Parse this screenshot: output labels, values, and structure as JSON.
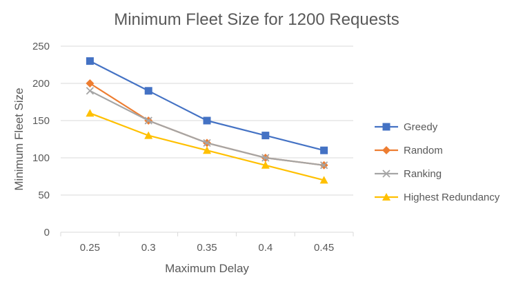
{
  "chart_data": {
    "type": "line",
    "title": "Minimum Fleet Size for 1200 Requests",
    "xlabel": "Maximum Delay",
    "ylabel": "Minimum Fleet Size",
    "categories": [
      "0.25",
      "0.3",
      "0.35",
      "0.4",
      "0.45"
    ],
    "ylim": [
      0,
      250
    ],
    "yticks": [
      "0",
      "50",
      "100",
      "150",
      "200",
      "250"
    ],
    "grid": true,
    "legend_position": "right",
    "series": [
      {
        "name": "Greedy",
        "values": [
          230,
          190,
          150,
          130,
          110
        ],
        "color": "#4472C4",
        "marker": "square"
      },
      {
        "name": "Random",
        "values": [
          200,
          150,
          120,
          100,
          90
        ],
        "color": "#ED7D31",
        "marker": "diamond"
      },
      {
        "name": "Ranking",
        "values": [
          190,
          150,
          120,
          100,
          90
        ],
        "color": "#A5A5A5",
        "marker": "x"
      },
      {
        "name": "Highest Redundancy",
        "values": [
          160,
          130,
          110,
          90,
          70
        ],
        "color": "#FFC000",
        "marker": "triangle"
      }
    ]
  }
}
